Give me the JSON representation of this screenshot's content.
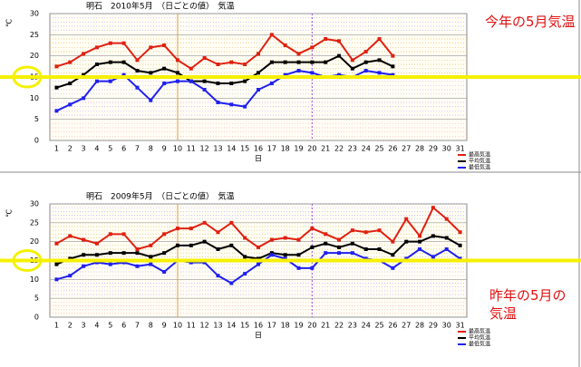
{
  "chart_data": [
    {
      "type": "line",
      "title": "明石　2010年5月　（日ごとの値）　気温",
      "y_label": "℃",
      "x_label": "日",
      "annotation": "今年の5月気温",
      "highlight": 15,
      "highlight_color": "#f5f000",
      "categories": [
        "1",
        "2",
        "3",
        "4",
        "5",
        "6",
        "7",
        "8",
        "9",
        "10",
        "11",
        "12",
        "13",
        "14",
        "15",
        "16",
        "17",
        "18",
        "19",
        "20",
        "21",
        "22",
        "23",
        "24",
        "25",
        "26",
        "27",
        "28",
        "29",
        "30",
        "31"
      ],
      "ylim": [
        0,
        30
      ],
      "yticks": [
        0,
        5,
        10,
        15,
        20,
        25,
        30
      ],
      "series": [
        {
          "name": "最高気温",
          "color": "#e02010",
          "values": [
            17.5,
            18.5,
            20.5,
            22,
            23,
            23,
            19,
            22,
            22.5,
            19,
            17,
            19.5,
            18,
            18.5,
            18,
            20.5,
            25,
            22.5,
            20.5,
            22,
            24,
            23.5,
            19,
            21,
            24,
            20,
            null,
            null,
            null,
            null,
            null
          ]
        },
        {
          "name": "平均気温",
          "color": "#000000",
          "values": [
            12.5,
            13.5,
            15.5,
            18,
            18.5,
            18.5,
            16.5,
            16,
            17,
            16,
            14,
            14,
            13.5,
            13.5,
            14,
            16,
            18.5,
            18.5,
            18.5,
            18.5,
            18.5,
            20,
            17,
            18.5,
            19,
            17.5,
            null,
            null,
            null,
            null,
            null
          ]
        },
        {
          "name": "最低気温",
          "color": "#2020f0",
          "values": [
            7,
            8.5,
            10,
            14,
            14,
            15.5,
            12.5,
            9.5,
            13.5,
            14,
            14,
            12,
            9,
            8.5,
            8,
            12,
            13.5,
            15.5,
            16.5,
            16,
            15,
            15.5,
            15,
            16.5,
            16,
            15.5,
            null,
            null,
            null,
            null,
            null
          ]
        }
      ]
    },
    {
      "type": "line",
      "title": "明石　2009年5月　（日ごとの値）　気温",
      "y_label": "℃",
      "x_label": "日",
      "annotation": "昨年の5月の気温",
      "highlight": 15,
      "highlight_color": "#f5f000",
      "categories": [
        "1",
        "2",
        "3",
        "4",
        "5",
        "6",
        "7",
        "8",
        "9",
        "10",
        "11",
        "12",
        "13",
        "14",
        "15",
        "16",
        "17",
        "18",
        "19",
        "20",
        "21",
        "22",
        "23",
        "24",
        "25",
        "26",
        "27",
        "28",
        "29",
        "30",
        "31"
      ],
      "ylim": [
        0,
        30
      ],
      "yticks": [
        0,
        5,
        10,
        15,
        20,
        25,
        30
      ],
      "series": [
        {
          "name": "最高気温",
          "color": "#e02010",
          "values": [
            19.5,
            21.5,
            20.5,
            19.5,
            22,
            22,
            18,
            19,
            22,
            23.5,
            23.5,
            25,
            22.5,
            25,
            21,
            18.5,
            20.5,
            21,
            20.5,
            23.5,
            22,
            20.5,
            23,
            22.5,
            23,
            20,
            26,
            21.5,
            29,
            26,
            22.5
          ]
        },
        {
          "name": "平均気温",
          "color": "#000000",
          "values": [
            14,
            15.5,
            16.5,
            16.5,
            17,
            17,
            17,
            16,
            17,
            19,
            19,
            20,
            18,
            19,
            16,
            15.5,
            17,
            16.5,
            16.5,
            18.5,
            19.5,
            18.5,
            19.5,
            18,
            18,
            16.5,
            20,
            20,
            21.5,
            21,
            19
          ]
        },
        {
          "name": "最低気温",
          "color": "#2020f0",
          "values": [
            10,
            11,
            13.5,
            14.5,
            14,
            14.5,
            13.5,
            14,
            12,
            15,
            14.5,
            14.5,
            11,
            9,
            11.5,
            14,
            16.5,
            15.5,
            13,
            13,
            17,
            17,
            17,
            15.5,
            15,
            13,
            15.5,
            18,
            16,
            18,
            15.5
          ]
        }
      ]
    }
  ]
}
